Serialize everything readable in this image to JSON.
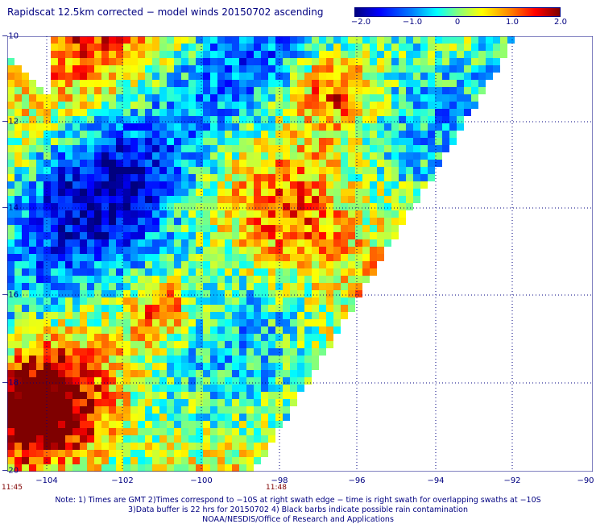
{
  "title": "Rapidscat 12.5km corrected − model winds 20150702 ascending",
  "colorbar": {
    "ticks": [
      "−2.0",
      "−1.0",
      "0",
      "1.0",
      "2.0"
    ],
    "min": -2.0,
    "max": 2.0
  },
  "axes": {
    "lat_labels": [
      "−10",
      "−12",
      "−14",
      "−16",
      "−18",
      "−20"
    ],
    "lon_labels": [
      "−104",
      "−102",
      "−100",
      "−98",
      "−96",
      "−94",
      "−92",
      "−90"
    ]
  },
  "times": {
    "left": "11:45",
    "right": "11:48"
  },
  "notes": {
    "line1": "Note: 1) Times are GMT 2)Times correspond to −10S at right swath edge − time is right swath for overlapping swaths at −10S",
    "line2": "3)Data buffer is 22 hrs for 20150702 4) Black barbs indicate possible rain contamination",
    "line3": "NOAA/NESDIS/Office of Research and Applications"
  },
  "colors": {
    "text": "#000080",
    "time": "#7f0000",
    "grid": "#000080"
  }
}
